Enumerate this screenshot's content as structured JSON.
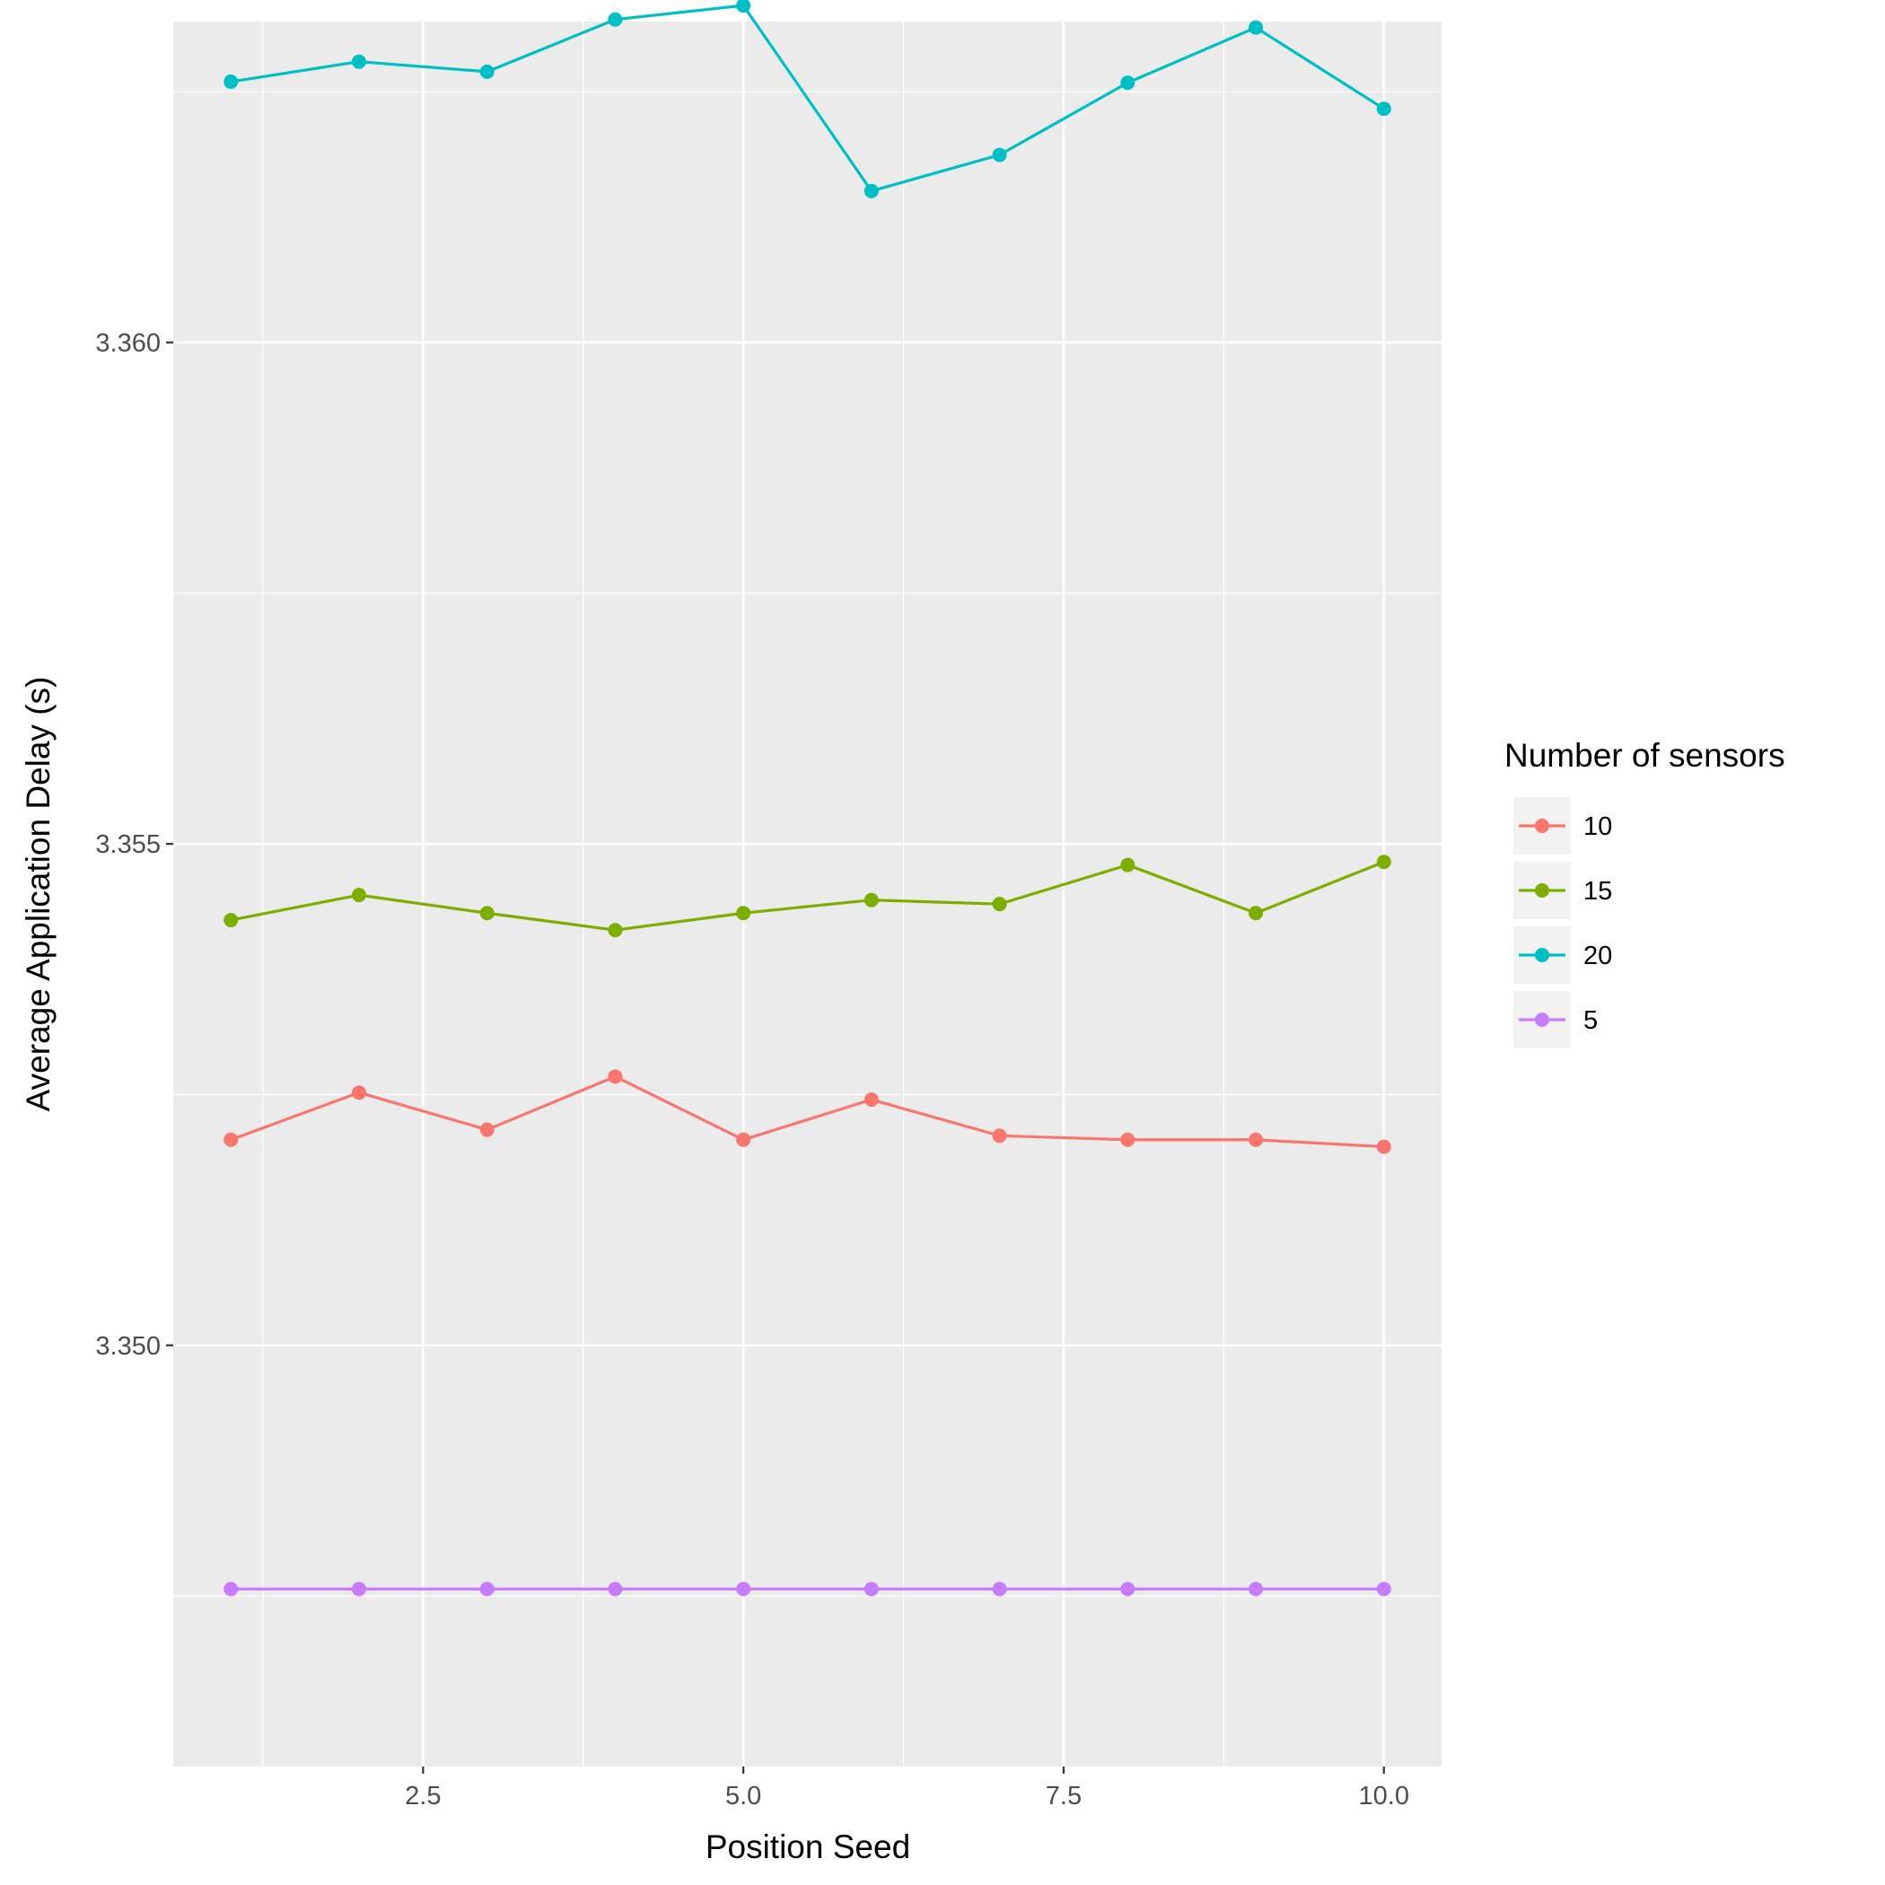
{
  "chart_data": {
    "type": "line",
    "xlabel": "Position Seed",
    "ylabel": "Average Application Delay (s)",
    "xlim": [
      0.55,
      10.45
    ],
    "ylim": [
      3.3458,
      3.3632
    ],
    "x_ticks": [
      2.5,
      5.0,
      7.5,
      10.0
    ],
    "x_tick_labels": [
      "2.5",
      "5.0",
      "7.5",
      "10.0"
    ],
    "x_minor_ticks": [
      1.25,
      3.75,
      6.25,
      8.75
    ],
    "y_ticks": [
      3.35,
      3.355,
      3.36
    ],
    "y_tick_labels": [
      "3.350",
      "3.355",
      "3.360"
    ],
    "y_minor_ticks": [
      3.3475,
      3.3525,
      3.3575,
      3.3625
    ],
    "grid": true,
    "legend": {
      "title": "Number of sensors",
      "position": "right"
    },
    "x": [
      1,
      2,
      3,
      4,
      5,
      6,
      7,
      8,
      9,
      10
    ],
    "series": [
      {
        "name": "10",
        "color": "#F8766D",
        "values": [
          3.35205,
          3.35252,
          3.35215,
          3.35268,
          3.35205,
          3.35245,
          3.35209,
          3.35205,
          3.35205,
          3.35198
        ]
      },
      {
        "name": "15",
        "color": "#7CAE00",
        "values": [
          3.35424,
          3.35449,
          3.35431,
          3.35414,
          3.35431,
          3.35444,
          3.3544,
          3.35479,
          3.35431,
          3.35482
        ]
      },
      {
        "name": "20",
        "color": "#00BFC4",
        "values": [
          3.3626,
          3.3628,
          3.3627,
          3.36322,
          3.36336,
          3.36151,
          3.36187,
          3.36259,
          3.36314,
          3.36233
        ]
      },
      {
        "name": "5",
        "color": "#C77CFF",
        "values": [
          3.34757,
          3.34757,
          3.34757,
          3.34757,
          3.34757,
          3.34757,
          3.34757,
          3.34757,
          3.34757,
          3.34757
        ]
      }
    ]
  }
}
